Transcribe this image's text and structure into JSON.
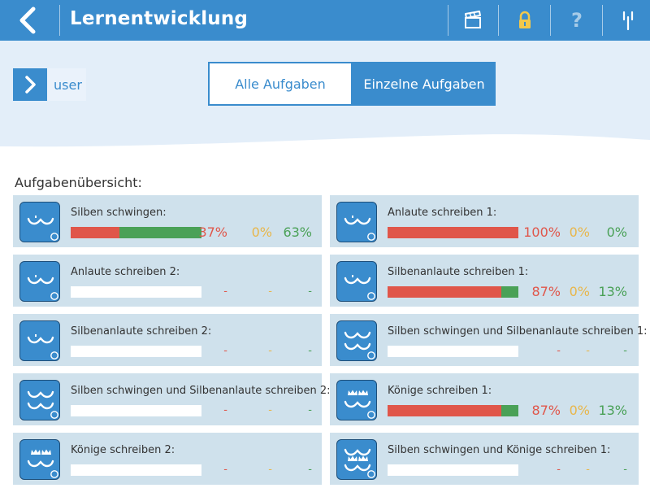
{
  "header": {
    "title": "Lernentwicklung",
    "help_label": "?"
  },
  "user": {
    "label": "user"
  },
  "tabs": [
    {
      "label": "Alle Aufgaben",
      "active": false
    },
    {
      "label": "Einzelne Aufgaben",
      "active": true
    }
  ],
  "section_title": "Aufgabenübersicht:",
  "colors": {
    "accent": "#3a8ccd",
    "wrong": "#e0564a",
    "partial": "#e8b64a",
    "correct": "#4aa157"
  },
  "tasks": [
    {
      "name": "Silben schwingen:",
      "icon": "single-wave-icon",
      "wrong_pct": 37,
      "partial_pct": 0,
      "correct_pct": 63,
      "wrong": "37%",
      "partial": "0%",
      "correct": "63%"
    },
    {
      "name": "Anlaute schreiben 1:",
      "icon": "single-wave-icon",
      "wrong_pct": 100,
      "partial_pct": 0,
      "correct_pct": 0,
      "wrong": "100%",
      "partial": "0%",
      "correct": "0%"
    },
    {
      "name": "Anlaute schreiben 2:",
      "icon": "single-wave-icon",
      "wrong_pct": 0,
      "partial_pct": 0,
      "correct_pct": 0,
      "wrong": "-",
      "partial": "-",
      "correct": "-"
    },
    {
      "name": "Silbenanlaute schreiben 1:",
      "icon": "single-wave-icon",
      "wrong_pct": 87,
      "partial_pct": 0,
      "correct_pct": 13,
      "wrong": "87%",
      "partial": "0%",
      "correct": "13%"
    },
    {
      "name": "Silbenanlaute schreiben 2:",
      "icon": "single-wave-icon",
      "wrong_pct": 0,
      "partial_pct": 0,
      "correct_pct": 0,
      "wrong": "-",
      "partial": "-",
      "correct": "-"
    },
    {
      "name": "Silben schwingen und Silbenanlaute schreiben 1:",
      "icon": "double-wave-icon",
      "wrong_pct": 0,
      "partial_pct": 0,
      "correct_pct": 0,
      "wrong": "-",
      "partial": "-",
      "correct": "-"
    },
    {
      "name": "Silben schwingen und Silbenanlaute schreiben 2:",
      "icon": "double-wave-icon",
      "wrong_pct": 0,
      "partial_pct": 0,
      "correct_pct": 0,
      "wrong": "-",
      "partial": "-",
      "correct": "-"
    },
    {
      "name": "Könige schreiben 1:",
      "icon": "crown-wave-icon",
      "wrong_pct": 87,
      "partial_pct": 0,
      "correct_pct": 13,
      "wrong": "87%",
      "partial": "0%",
      "correct": "13%"
    },
    {
      "name": "Könige schreiben 2:",
      "icon": "crown-wave-icon",
      "wrong_pct": 0,
      "partial_pct": 0,
      "correct_pct": 0,
      "wrong": "-",
      "partial": "-",
      "correct": "-"
    },
    {
      "name": "Silben schwingen und Könige schreiben 1:",
      "icon": "double-crown-wave-icon",
      "wrong_pct": 0,
      "partial_pct": 0,
      "correct_pct": 0,
      "wrong": "-",
      "partial": "-",
      "correct": "-"
    }
  ]
}
